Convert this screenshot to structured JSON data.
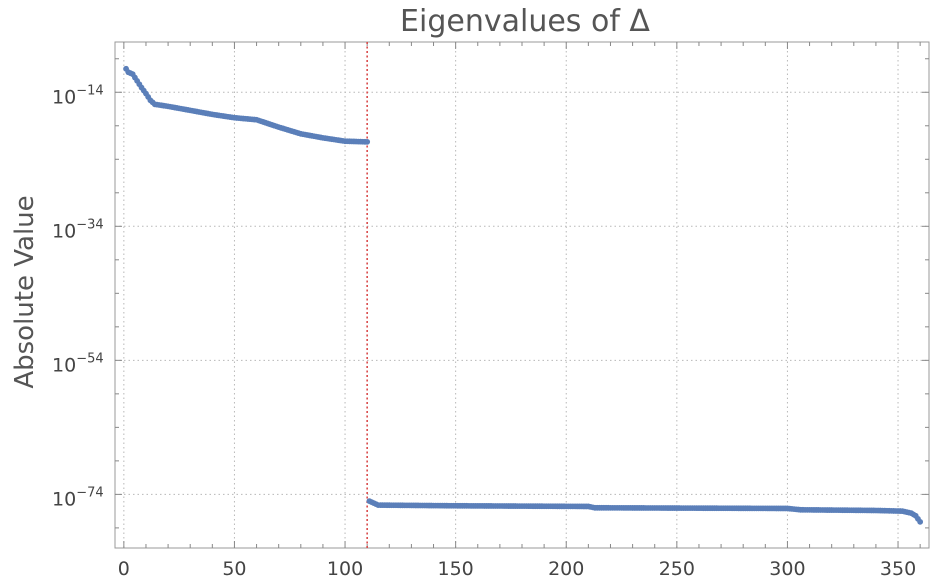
{
  "chart_data": {
    "type": "scatter",
    "title": "Eigenvalues of Δ",
    "xlabel": "",
    "ylabel": "Absolute Value",
    "xlim": [
      -4,
      364
    ],
    "ylim_log10": [
      -82,
      -6.5
    ],
    "y_scale": "log",
    "grid": true,
    "x_ticks": [
      0,
      50,
      100,
      150,
      200,
      250,
      300,
      350
    ],
    "x_tick_labels": [
      "0",
      "50",
      "100",
      "150",
      "200",
      "250",
      "300",
      "350"
    ],
    "y_ticks_log10": [
      -14,
      -34,
      -54,
      -74
    ],
    "y_tick_labels": [
      {
        "base": "10",
        "exp": "−14"
      },
      {
        "base": "10",
        "exp": "−34"
      },
      {
        "base": "10",
        "exp": "−54"
      },
      {
        "base": "10",
        "exp": "−74"
      }
    ],
    "cutoff_x": 110,
    "series": [
      {
        "color": "#5b7fb9",
        "segments_log10": [
          [
            1,
            -10.5
          ],
          [
            2,
            -11.0
          ],
          [
            4,
            -11.3
          ],
          [
            6,
            -12.3
          ],
          [
            8,
            -13.3
          ],
          [
            10,
            -14.2
          ],
          [
            12,
            -15.2
          ],
          [
            14,
            -15.8
          ],
          [
            20,
            -16.1
          ],
          [
            30,
            -16.7
          ],
          [
            40,
            -17.3
          ],
          [
            50,
            -17.8
          ],
          [
            60,
            -18.1
          ],
          [
            70,
            -19.2
          ],
          [
            80,
            -20.2
          ],
          [
            90,
            -20.8
          ],
          [
            100,
            -21.3
          ],
          [
            110,
            -21.4
          ],
          [
            111,
            -75.0
          ],
          [
            115,
            -75.6
          ],
          [
            150,
            -75.7
          ],
          [
            210,
            -75.8
          ],
          [
            213,
            -76.0
          ],
          [
            300,
            -76.1
          ],
          [
            306,
            -76.3
          ],
          [
            340,
            -76.4
          ],
          [
            352,
            -76.5
          ],
          [
            356,
            -76.8
          ],
          [
            358,
            -77.2
          ],
          [
            360,
            -78.1
          ]
        ]
      }
    ]
  }
}
